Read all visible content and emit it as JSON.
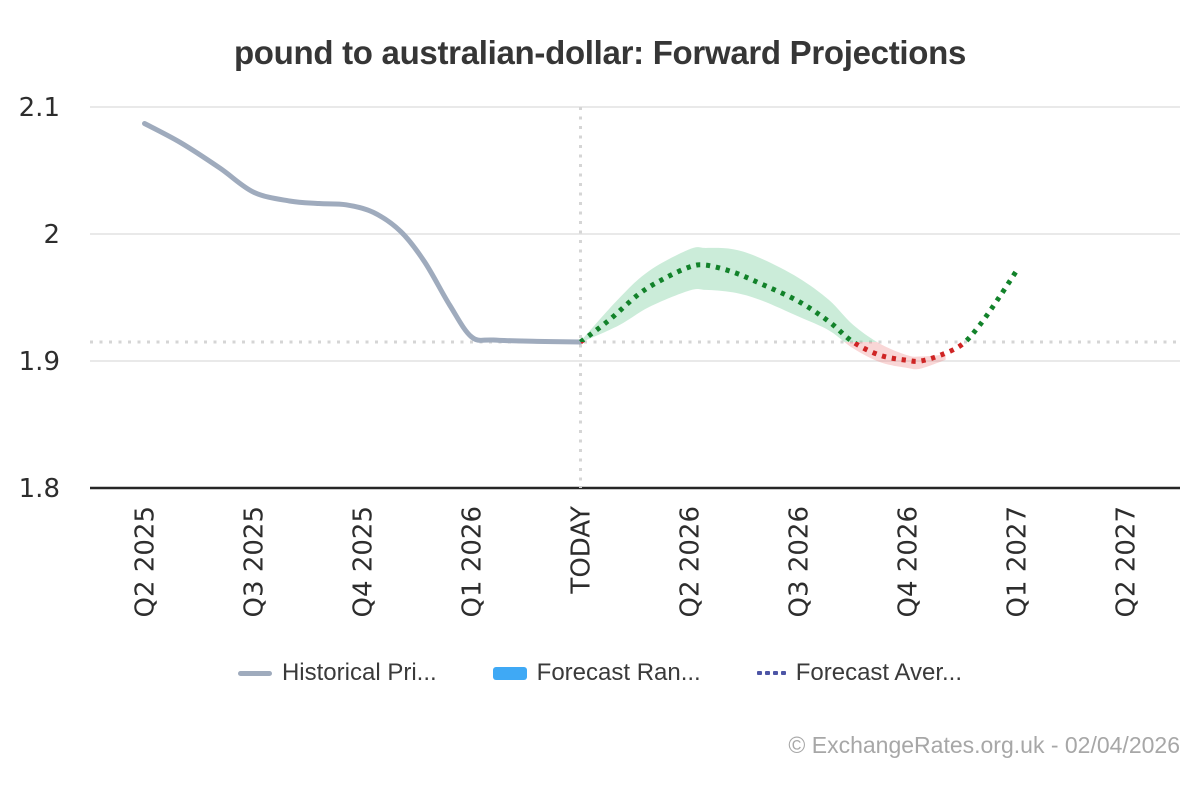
{
  "header": {
    "title": "pound to australian-dollar: Forward Projections"
  },
  "chart_data": {
    "type": "line",
    "title": "pound to australian-dollar: Forward Projections",
    "x_categories": [
      "Q2 2025",
      "Q3 2025",
      "Q4 2025",
      "Q1 2026",
      "TODAY",
      "Q2 2026",
      "Q3 2026",
      "Q4 2026",
      "Q1 2027",
      "Q2 2027"
    ],
    "today_index": 4,
    "ylim": [
      1.8,
      2.1
    ],
    "y_ticks": [
      {
        "value": 1.8,
        "label": "1.8"
      },
      {
        "value": 1.9,
        "label": "1.9"
      },
      {
        "value": 2.0,
        "label": "2"
      },
      {
        "value": 2.1,
        "label": "2.1"
      }
    ],
    "reference_level": 1.915,
    "grid": true,
    "legend_position": "bottom",
    "series": [
      {
        "name": "Historical Price",
        "style": "solid",
        "color": "#9fabbd",
        "points": [
          [
            0,
            2.087
          ],
          [
            0.33,
            2.072
          ],
          [
            0.69,
            2.052
          ],
          [
            1,
            2.033
          ],
          [
            1.33,
            2.026
          ],
          [
            1.6,
            2.024
          ],
          [
            1.85,
            2.023
          ],
          [
            2.1,
            2.017
          ],
          [
            2.35,
            2.002
          ],
          [
            2.57,
            1.978
          ],
          [
            2.8,
            1.944
          ],
          [
            3,
            1.919
          ],
          [
            3.2,
            1.9165
          ],
          [
            3.6,
            1.9155
          ],
          [
            4,
            1.915
          ]
        ]
      },
      {
        "name": "Forecast Average",
        "style": "dotted",
        "color_above": "#12822a",
        "color_below": "#cf2424",
        "points": [
          [
            4,
            1.915
          ],
          [
            4.26,
            1.932
          ],
          [
            4.54,
            1.953
          ],
          [
            4.77,
            1.965
          ],
          [
            5,
            1.974
          ],
          [
            5.15,
            1.9755
          ],
          [
            5.4,
            1.97
          ],
          [
            5.65,
            1.961
          ],
          [
            6,
            1.947
          ],
          [
            6.28,
            1.931
          ],
          [
            6.5,
            1.915
          ],
          [
            6.75,
            1.9045
          ],
          [
            7,
            1.9005
          ],
          [
            7.12,
            1.9
          ],
          [
            7.3,
            1.9045
          ],
          [
            7.5,
            1.913
          ],
          [
            7.66,
            1.928
          ],
          [
            7.84,
            1.95
          ],
          [
            8,
            1.971
          ]
        ]
      }
    ],
    "band": {
      "name": "Forecast Range",
      "fill_above": "rgba(92,196,138,0.32)",
      "fill_below": "rgba(234,120,120,0.30)",
      "points": [
        [
          4,
          1.9155,
          1.9145
        ],
        [
          4.35,
          1.949,
          1.928
        ],
        [
          4.63,
          1.971,
          1.9425
        ],
        [
          5,
          1.988,
          1.9555
        ],
        [
          5.15,
          1.989,
          1.956
        ],
        [
          5.4,
          1.988,
          1.954
        ],
        [
          5.65,
          1.981,
          1.948
        ],
        [
          6,
          1.9655,
          1.935
        ],
        [
          6.28,
          1.948,
          1.924
        ],
        [
          6.5,
          1.9285,
          1.91
        ],
        [
          6.75,
          1.9135,
          1.899
        ],
        [
          7,
          1.9045,
          1.8945
        ],
        [
          7.12,
          1.9035,
          1.894
        ],
        [
          7.35,
          1.905,
          1.901
        ]
      ]
    },
    "axis_colors": {
      "grid": "#e2e2e2",
      "baseline": "#262626",
      "dotted_guides": "#d5d5d5",
      "tick_text": "#2d2d2d"
    }
  },
  "legend": {
    "items": [
      {
        "label": "Historical Pri...",
        "swatch": "line",
        "color": "#9fabbd"
      },
      {
        "label": "Forecast Ran...",
        "swatch": "rect",
        "color": "#3fa9f5"
      },
      {
        "label": "Forecast Aver...",
        "swatch": "dots",
        "color": "#4d55a6"
      }
    ]
  },
  "footer": {
    "credit": "© ExchangeRates.org.uk - 02/04/2026"
  }
}
